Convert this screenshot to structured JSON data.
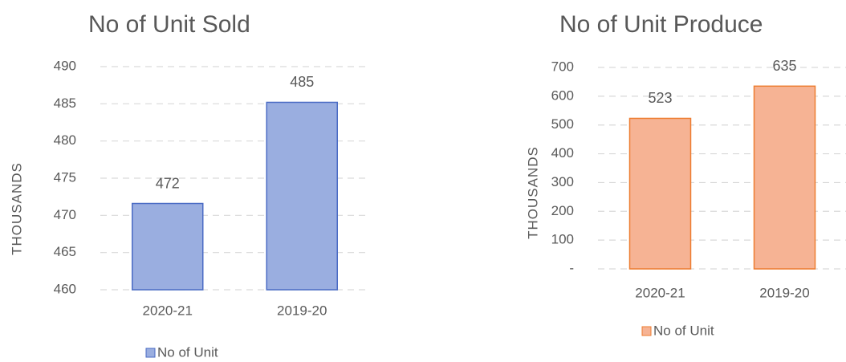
{
  "chart_data": [
    {
      "type": "bar",
      "title": "No of Unit Sold",
      "ylabel": "THOUSANDS",
      "categories": [
        "2020-21",
        "2019-20"
      ],
      "series": [
        {
          "name": "No of Unit",
          "color": "#9aaee0",
          "edgecolor": "#4a6bc4",
          "values": [
            471.6,
            485.2
          ],
          "value_labels": [
            "472",
            "485"
          ]
        }
      ],
      "ylim": [
        460,
        490
      ],
      "yticks": [
        460,
        465,
        470,
        475,
        480,
        485,
        490
      ],
      "grid": true
    },
    {
      "type": "bar",
      "title": "No of Unit Produce",
      "ylabel": "THOUSANDS",
      "categories": [
        "2020-21",
        "2019-20"
      ],
      "series": [
        {
          "name": "No of Unit",
          "color": "#f6b394",
          "edgecolor": "#ed7d31",
          "values": [
            523,
            635
          ]
        }
      ],
      "ylim": [
        0,
        700
      ],
      "yticks": [
        {
          "value": 0,
          "label": "-"
        },
        100,
        200,
        300,
        400,
        500,
        600,
        700
      ],
      "grid": true
    }
  ]
}
